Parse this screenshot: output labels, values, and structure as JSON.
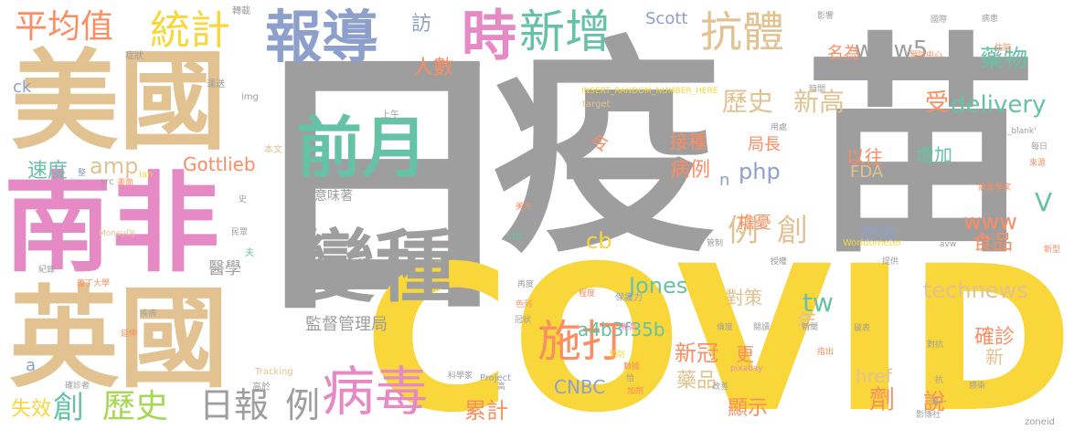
{
  "words": [
    {
      "id": "ri",
      "text": "日",
      "color": "#9e9e9e"
    },
    {
      "id": "yi",
      "text": "疫",
      "color": "#9e9e9e"
    },
    {
      "id": "miao",
      "text": "苗",
      "color": "#9e9e9e"
    },
    {
      "id": "covid",
      "text": "COVID",
      "color": "#f9d63a"
    },
    {
      "id": "meiguo",
      "text": "美國",
      "color": "#e2c290"
    },
    {
      "id": "nanfei",
      "text": "南非",
      "color": "#e58ac5"
    },
    {
      "id": "yingguo",
      "text": "英國",
      "color": "#e2c290"
    },
    {
      "id": "baodao",
      "text": "報導",
      "color": "#8da0cb"
    },
    {
      "id": "shi",
      "text": "時",
      "color": "#e58ac5"
    },
    {
      "id": "xinzeng",
      "text": "新增",
      "color": "#66c2a5"
    },
    {
      "id": "kangti",
      "text": "抗體",
      "color": "#e2c290"
    },
    {
      "id": "pingjunzhi",
      "text": "平均值",
      "color": "#fc8d62"
    },
    {
      "id": "tongji",
      "text": "統計",
      "color": "#f9d63a"
    },
    {
      "id": "qianyue",
      "text": "前月",
      "color": "#66c2a5"
    },
    {
      "id": "bianzhong",
      "text": "變種",
      "color": "#9e9e9e"
    },
    {
      "id": "jiandu",
      "text": "監督管理局",
      "color": "#9e9e9e"
    },
    {
      "id": "yiweizhe",
      "text": "意味著",
      "color": "#9e9e9e"
    },
    {
      "id": "bingdu",
      "text": "病毒",
      "color": "#e58ac5"
    },
    {
      "id": "shida",
      "text": "施打",
      "color": "#fc8d62"
    },
    {
      "id": "ribao",
      "text": "日報",
      "color": "#9e9e9e"
    },
    {
      "id": "li1",
      "text": "例",
      "color": "#9e9e9e"
    },
    {
      "id": "chuang1",
      "text": "創",
      "color": "#66c2a5"
    },
    {
      "id": "lishi1",
      "text": "歷史",
      "color": "#a6d854"
    },
    {
      "id": "lishi2",
      "text": "歷史",
      "color": "#e2c290"
    },
    {
      "id": "xingao",
      "text": "新高",
      "color": "#e2c290"
    },
    {
      "id": "www5",
      "text": "www5",
      "color": "#9e9e9e"
    },
    {
      "id": "yaowu",
      "text": "藥物",
      "color": "#66c2a5"
    },
    {
      "id": "delivery",
      "text": "delivery",
      "color": "#66c2a5"
    },
    {
      "id": "shou",
      "text": "受",
      "color": "#fc8d62"
    },
    {
      "id": "jiezhong",
      "text": "接種",
      "color": "#fc8d62"
    },
    {
      "id": "juzhang",
      "text": "局長",
      "color": "#fc8d62"
    },
    {
      "id": "yiwang",
      "text": "以往",
      "color": "#fc8d62"
    },
    {
      "id": "zengjia",
      "text": "增加",
      "color": "#66c2a5"
    },
    {
      "id": "fda",
      "text": "FDA",
      "color": "#e2c290"
    },
    {
      "id": "php",
      "text": "php",
      "color": "#8da0cb"
    },
    {
      "id": "bingli",
      "text": "病例",
      "color": "#fc8d62"
    },
    {
      "id": "li2",
      "text": "例",
      "color": "#e2c290"
    },
    {
      "id": "chuang2",
      "text": "創",
      "color": "#e2c290"
    },
    {
      "id": "danyou",
      "text": "擔憂",
      "color": "#fc8d62"
    },
    {
      "id": "jiakuai",
      "text": "加快",
      "color": "#8da0cb"
    },
    {
      "id": "www",
      "text": "www",
      "color": "#fc8d62"
    },
    {
      "id": "shipin",
      "text": "食品",
      "color": "#fc8d62"
    },
    {
      "id": "v",
      "text": "V",
      "color": "#66c2a5"
    },
    {
      "id": "technews",
      "text": "technews",
      "color": "#e2c290"
    },
    {
      "id": "jones",
      "text": "Jones",
      "color": "#66c2a5"
    },
    {
      "id": "cb",
      "text": "cb",
      "color": "#f9d63a"
    },
    {
      "id": "duice",
      "text": "對策",
      "color": "#e2c290"
    },
    {
      "id": "tw",
      "text": "tw",
      "color": "#66c2a5"
    },
    {
      "id": "nian",
      "text": "年",
      "color": "#e2c290"
    },
    {
      "id": "querzhen",
      "text": "確診",
      "color": "#fc8d62"
    },
    {
      "id": "xin",
      "text": "新",
      "color": "#e2c290"
    },
    {
      "id": "a4b3",
      "text": "a4b3f35b",
      "color": "#66c2a5"
    },
    {
      "id": "xinguan",
      "text": "新冠",
      "color": "#fc8d62"
    },
    {
      "id": "geng",
      "text": "更",
      "color": "#fc8d62"
    },
    {
      "id": "cnbc",
      "text": "CNBC",
      "color": "#8da0cb"
    },
    {
      "id": "yaopin",
      "text": "藥品",
      "color": "#e2c290"
    },
    {
      "id": "href",
      "text": "href",
      "color": "#e2c290"
    },
    {
      "id": "ji",
      "text": "劑",
      "color": "#fc8d62"
    },
    {
      "id": "shuo",
      "text": "說",
      "color": "#fc8d62"
    },
    {
      "id": "xianshi",
      "text": "顯示",
      "color": "#fc8d62"
    },
    {
      "id": "leiji",
      "text": "累計",
      "color": "#fc8d62"
    },
    {
      "id": "shixiao",
      "text": "失效",
      "color": "#f9d63a"
    },
    {
      "id": "amp",
      "text": "amp",
      "color": "#e2c290"
    },
    {
      "id": "gottlieb",
      "text": "Gottlieb",
      "color": "#fc8d62"
    },
    {
      "id": "sudu",
      "text": "速度",
      "color": "#66c2a5"
    },
    {
      "id": "renshu",
      "text": "人數",
      "color": "#fc8d62"
    },
    {
      "id": "fang",
      "text": "訪",
      "color": "#8da0cb"
    },
    {
      "id": "scott",
      "text": "Scott",
      "color": "#8da0cb"
    },
    {
      "id": "mingwei",
      "text": "名為",
      "color": "#fc8d62"
    },
    {
      "id": "ling",
      "text": "令",
      "color": "#fc8d62"
    },
    {
      "id": "n",
      "text": "n",
      "color": "#8da0cb"
    },
    {
      "id": "ck",
      "text": "ck",
      "color": "#8da0cb"
    },
    {
      "id": "yixue",
      "text": "醫學",
      "color": "#9e9e9e"
    },
    {
      "id": "a",
      "text": "a",
      "color": "#8da0cb"
    },
    {
      "id": "zhuangkuang",
      "text": "症狀",
      "color": "#9e9e9e"
    },
    {
      "id": "zhuanzai",
      "text": "轉載",
      "color": "#9e9e9e"
    },
    {
      "id": "yunsong",
      "text": "運送",
      "color": "#9e9e9e"
    },
    {
      "id": "img",
      "text": "img",
      "color": "#9e9e9e"
    },
    {
      "id": "insert",
      "text": "INSERT_RANDOM_NUMBER_HERE",
      "color": "#f9d63a"
    },
    {
      "id": "target",
      "text": "target",
      "color": "#e2c290"
    },
    {
      "id": "shangwu",
      "text": "上午",
      "color": "#9e9e9e"
    },
    {
      "id": "benwen",
      "text": "本文",
      "color": "#e2c290"
    },
    {
      "id": "lan",
      "text": "lan",
      "color": "#f9d63a"
    },
    {
      "id": "src",
      "text": "src",
      "color": "#9e9e9e"
    },
    {
      "id": "zheng",
      "text": "整",
      "color": "#8da0cb"
    },
    {
      "id": "huamian",
      "text": "畫面",
      "color": "#fc8d62"
    },
    {
      "id": "shi2",
      "text": "史",
      "color": "#9e9e9e"
    },
    {
      "id": "minzhong",
      "text": "民眾",
      "color": "#9e9e9e"
    },
    {
      "id": "moneydj",
      "text": "MoneyDJ",
      "color": "#e2c290"
    },
    {
      "id": "fu",
      "text": "夫",
      "color": "#66c2a5"
    },
    {
      "id": "jilu",
      "text": "紀錄",
      "color": "#9e9e9e"
    },
    {
      "id": "beiding",
      "text": "蕾丁大學",
      "color": "#fc8d62"
    },
    {
      "id": "jibing",
      "text": "疾病",
      "color": "#9e9e9e"
    },
    {
      "id": "yanshen",
      "text": "延伸",
      "color": "#fc8d62"
    },
    {
      "id": "tracking",
      "text": "Tracking",
      "color": "#e2c290"
    },
    {
      "id": "gaoyu",
      "text": "高於",
      "color": "#9e9e9e"
    },
    {
      "id": "quezhenzhe",
      "text": "確診者",
      "color": "#9e9e9e"
    },
    {
      "id": "meifang",
      "text": "美方",
      "color": "#fc8d62"
    },
    {
      "id": "cdc",
      "text": "CDC",
      "color": "#66c2a5"
    },
    {
      "id": "zaidu",
      "text": "再度",
      "color": "#9e9e9e"
    },
    {
      "id": "chengdu",
      "text": "程度",
      "color": "#fc8d62"
    },
    {
      "id": "sela",
      "text": "色列",
      "color": "#fc8d62"
    },
    {
      "id": "guanzhuang",
      "text": "冠狀",
      "color": "#9e9e9e"
    },
    {
      "id": "baohuli",
      "text": "保護力",
      "color": "#8da0cb"
    },
    {
      "id": "jixiao",
      "text": "幾高",
      "color": "#e58ac5"
    },
    {
      "id": "kexuejia",
      "text": "科學家",
      "color": "#9e9e9e"
    },
    {
      "id": "project",
      "text": "Project",
      "color": "#8da0cb"
    },
    {
      "id": "gao",
      "text": "高",
      "color": "#9e9e9e"
    },
    {
      "id": "yufang",
      "text": "預防",
      "color": "#f9d63a"
    },
    {
      "id": "shuju",
      "text": "數據",
      "color": "#fc8d62"
    },
    {
      "id": "qia",
      "text": "恰",
      "color": "#9e9e9e"
    },
    {
      "id": "jiaji",
      "text": "加劑",
      "color": "#fc8d62"
    },
    {
      "id": "guanli",
      "text": "管制",
      "color": "#9e9e9e"
    },
    {
      "id": "jiaoshou",
      "text": "授權",
      "color": "#9e9e9e"
    },
    {
      "id": "yongdu",
      "text": "用處",
      "color": "#9e9e9e"
    },
    {
      "id": "shijian",
      "text": "時間",
      "color": "#9e9e9e"
    },
    {
      "id": "yingxiang",
      "text": "影響",
      "color": "#9e9e9e"
    },
    {
      "id": "yufangzx",
      "text": "預防中心",
      "color": "#fc8d62"
    },
    {
      "id": "huan",
      "text": "懷",
      "color": "#9e9e9e"
    },
    {
      "id": "zhangti",
      "text": "張體",
      "color": "#9e9e9e"
    },
    {
      "id": "worldometer",
      "text": "Worldometer",
      "color": "#f9d63a"
    },
    {
      "id": "avw",
      "text": "avw",
      "color": "#9e9e9e"
    },
    {
      "id": "tigong",
      "text": "提供",
      "color": "#9e9e9e"
    },
    {
      "id": "pixabay",
      "text": "pixabay",
      "color": "#e58ac5"
    },
    {
      "id": "gaishan",
      "text": "改善",
      "color": "#9e9e9e"
    },
    {
      "id": "yidu",
      "text": "倫度",
      "color": "#9e9e9e"
    },
    {
      "id": "yuedu",
      "text": "閱讀",
      "color": "#9e9e9e"
    },
    {
      "id": "zhichu",
      "text": "指出",
      "color": "#fc8d62"
    },
    {
      "id": "xinwen",
      "text": "新聞",
      "color": "#9e9e9e"
    },
    {
      "id": "pochu",
      "text": "破表",
      "color": "#9e9e9e"
    },
    {
      "id": "duikang",
      "text": "對抗",
      "color": "#9e9e9e"
    },
    {
      "id": "kang",
      "text": "抗",
      "color": "#9e9e9e"
    },
    {
      "id": "ganran",
      "text": "感染",
      "color": "#9e9e9e"
    },
    {
      "id": "diyi",
      "text": "第一",
      "color": "#9e9e9e"
    },
    {
      "id": "yingbo",
      "text": "影博社",
      "color": "#9e9e9e"
    },
    {
      "id": "zoneid",
      "text": "zoneid",
      "color": "#9e9e9e"
    },
    {
      "id": "blank",
      "text": "_blank'",
      "color": "#9e9e9e"
    },
    {
      "id": "meiri",
      "text": "每日",
      "color": "#9e9e9e"
    },
    {
      "id": "laiyuan",
      "text": "來源",
      "color": "#fc8d62"
    },
    {
      "id": "bingyuan",
      "text": "病患",
      "color": "#9e9e9e"
    },
    {
      "id": "juzhu",
      "text": "住院",
      "color": "#fc8d62"
    },
    {
      "id": "bingduxuejia",
      "text": "病毒學家",
      "color": "#fc8d62"
    },
    {
      "id": "xinxing",
      "text": "新型",
      "color": "#fc8d62"
    },
    {
      "id": "gongshi",
      "text": "國際",
      "color": "#9e9e9e"
    }
  ]
}
